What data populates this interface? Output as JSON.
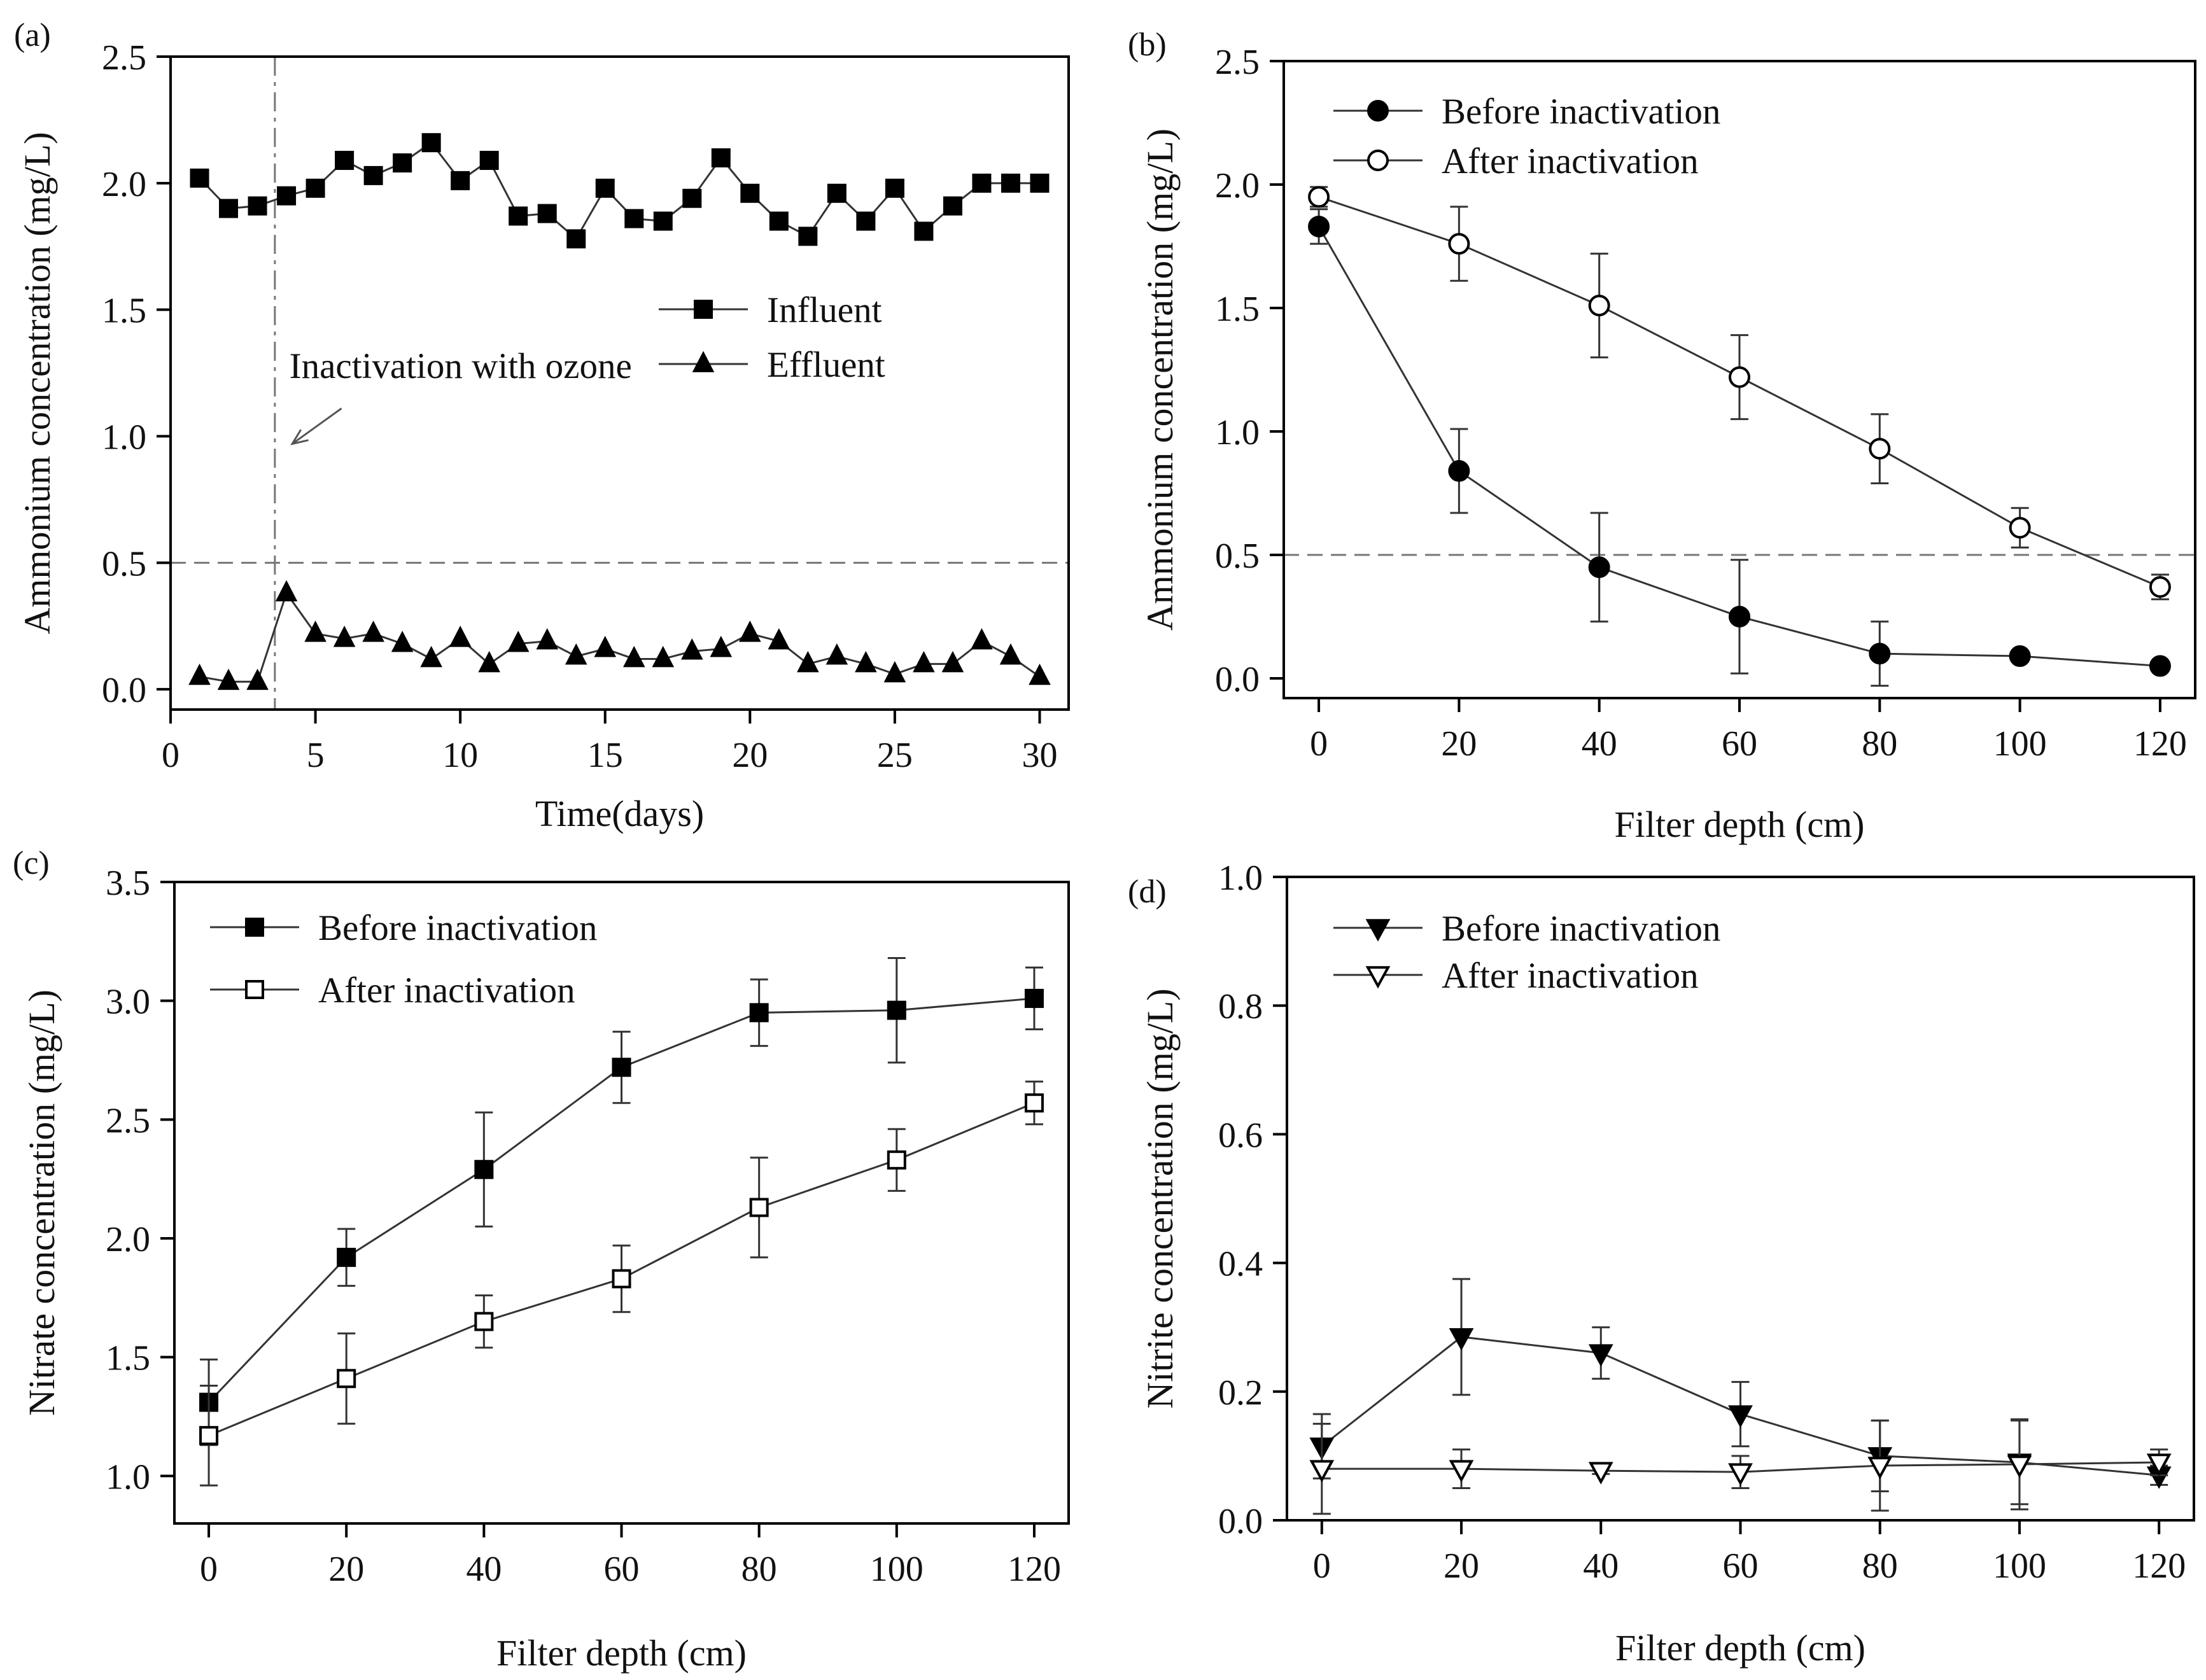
{
  "chart_data": [
    {
      "id": "a",
      "type": "line",
      "panel_label": "(a)",
      "xlabel": "Time(days)",
      "ylabel": "Ammonium concentration (mg/L)",
      "xlim": [
        0,
        31
      ],
      "ylim": [
        -0.08,
        2.5
      ],
      "xticks": [
        0,
        5,
        10,
        15,
        20,
        25,
        30
      ],
      "xtick_labels": [
        "0",
        "5",
        "10",
        "15",
        "20",
        "25",
        "30"
      ],
      "yticks": [
        0,
        0.5,
        1,
        1.5,
        2,
        2.5
      ],
      "ytick_labels": [
        "0.0",
        "0.5",
        "1.0",
        "1.5",
        "2.0",
        "2.5"
      ],
      "hline": 0.5,
      "vline": 3.6,
      "annotation": {
        "text": "Inactivation with ozone",
        "text_at": [
          4.1,
          1.23
        ],
        "arrow_from": [
          5.9,
          1.11
        ],
        "arrow_to": [
          4.2,
          0.97
        ]
      },
      "legend_position": "center-right",
      "series": [
        {
          "name": "Influent",
          "marker": "square",
          "filled": true,
          "x": [
            1,
            2,
            3,
            4,
            5,
            6,
            7,
            8,
            9,
            10,
            11,
            12,
            13,
            14,
            15,
            16,
            17,
            18,
            19,
            20,
            21,
            22,
            23,
            24,
            25,
            26,
            27,
            28,
            29,
            30
          ],
          "values": [
            2.02,
            1.9,
            1.91,
            1.95,
            1.98,
            2.09,
            2.03,
            2.08,
            2.16,
            2.01,
            2.09,
            1.87,
            1.88,
            1.78,
            1.98,
            1.86,
            1.85,
            1.94,
            2.1,
            1.96,
            1.85,
            1.79,
            1.96,
            1.85,
            1.98,
            1.81,
            1.91,
            2.0,
            2.0,
            2.0
          ]
        },
        {
          "name": "Effluent",
          "marker": "triangle-up",
          "filled": true,
          "x": [
            1,
            2,
            3,
            4,
            5,
            6,
            7,
            8,
            9,
            10,
            11,
            12,
            13,
            14,
            15,
            16,
            17,
            18,
            19,
            20,
            21,
            22,
            23,
            24,
            25,
            26,
            27,
            28,
            29,
            30
          ],
          "values": [
            0.05,
            0.03,
            0.03,
            0.38,
            0.22,
            0.2,
            0.22,
            0.18,
            0.12,
            0.2,
            0.1,
            0.18,
            0.19,
            0.13,
            0.16,
            0.12,
            0.12,
            0.15,
            0.16,
            0.22,
            0.19,
            0.1,
            0.13,
            0.1,
            0.06,
            0.1,
            0.1,
            0.19,
            0.13,
            0.05
          ]
        }
      ]
    },
    {
      "id": "b",
      "type": "line",
      "panel_label": "(b)",
      "xlabel": "Filter depth (cm)",
      "ylabel": "Ammonium concentration (mg/L)",
      "xlim": [
        -5,
        125
      ],
      "ylim": [
        -0.08,
        2.5
      ],
      "xticks": [
        0,
        20,
        40,
        60,
        80,
        100,
        120
      ],
      "xtick_labels": [
        "0",
        "20",
        "40",
        "60",
        "80",
        "100",
        "120"
      ],
      "yticks": [
        0,
        0.5,
        1,
        1.5,
        2,
        2.5
      ],
      "ytick_labels": [
        "0.0",
        "0.5",
        "1.0",
        "1.5",
        "2.0",
        "2.5"
      ],
      "hline": 0.5,
      "legend_position": "top-center",
      "series": [
        {
          "name": "Before inactivation",
          "marker": "circle",
          "filled": true,
          "x": [
            0,
            20,
            40,
            60,
            80,
            100,
            120
          ],
          "values": [
            1.83,
            0.84,
            0.45,
            0.25,
            0.1,
            0.09,
            0.05
          ],
          "err": [
            0.07,
            0.17,
            0.22,
            0.23,
            0.13,
            0.0,
            0.0
          ]
        },
        {
          "name": "After inactivation",
          "marker": "circle",
          "filled": false,
          "x": [
            0,
            20,
            40,
            60,
            80,
            100,
            120
          ],
          "values": [
            1.95,
            1.76,
            1.51,
            1.22,
            0.93,
            0.61,
            0.37
          ],
          "err": [
            0.04,
            0.15,
            0.21,
            0.17,
            0.14,
            0.08,
            0.05
          ]
        }
      ]
    },
    {
      "id": "c",
      "type": "line",
      "panel_label": "(c)",
      "xlabel": "Filter depth (cm)",
      "ylabel": "Nitrate concentration (mg/L)",
      "xlim": [
        -5,
        125
      ],
      "ylim": [
        0.8,
        3.5
      ],
      "xticks": [
        0,
        20,
        40,
        60,
        80,
        100,
        120
      ],
      "xtick_labels": [
        "0",
        "20",
        "40",
        "60",
        "80",
        "100",
        "120"
      ],
      "yticks": [
        1,
        1.5,
        2,
        2.5,
        3,
        3.5
      ],
      "ytick_labels": [
        "1.0",
        "1.5",
        "2.0",
        "2.5",
        "3.0",
        "3.5"
      ],
      "legend_position": "top-left",
      "series": [
        {
          "name": "Before inactivation",
          "marker": "square",
          "filled": true,
          "x": [
            0,
            20,
            40,
            60,
            80,
            100,
            120
          ],
          "values": [
            1.31,
            1.92,
            2.29,
            2.72,
            2.95,
            2.96,
            3.01
          ],
          "err": [
            0.18,
            0.12,
            0.24,
            0.15,
            0.14,
            0.22,
            0.13
          ]
        },
        {
          "name": "After inactivation",
          "marker": "square",
          "filled": false,
          "x": [
            0,
            20,
            40,
            60,
            80,
            100,
            120
          ],
          "values": [
            1.17,
            1.41,
            1.65,
            1.83,
            2.13,
            2.33,
            2.57
          ],
          "err": [
            0.21,
            0.19,
            0.11,
            0.14,
            0.21,
            0.13,
            0.09
          ]
        }
      ]
    },
    {
      "id": "d",
      "type": "line",
      "panel_label": "(d)",
      "xlabel": "Filter depth (cm)",
      "ylabel": "Nitrite concentration (mg/L)",
      "xlim": [
        -5,
        125
      ],
      "ylim": [
        0,
        1
      ],
      "xticks": [
        0,
        20,
        40,
        60,
        80,
        100,
        120
      ],
      "xtick_labels": [
        "0",
        "20",
        "40",
        "60",
        "80",
        "100",
        "120"
      ],
      "yticks": [
        0,
        0.2,
        0.4,
        0.6,
        0.8,
        1
      ],
      "ytick_labels": [
        "0.0",
        "0.2",
        "0.4",
        "0.6",
        "0.8",
        "1.0"
      ],
      "legend_position": "top-center",
      "series": [
        {
          "name": "Before inactivation",
          "marker": "triangle-down",
          "filled": true,
          "x": [
            0,
            20,
            40,
            60,
            80,
            100,
            120
          ],
          "values": [
            0.115,
            0.285,
            0.26,
            0.165,
            0.1,
            0.09,
            0.07
          ],
          "err": [
            0.05,
            0.09,
            0.04,
            0.05,
            0.055,
            0.065,
            0.015
          ]
        },
        {
          "name": "After inactivation",
          "marker": "triangle-down",
          "filled": false,
          "x": [
            0,
            20,
            40,
            60,
            80,
            100,
            120
          ],
          "values": [
            0.08,
            0.08,
            0.077,
            0.075,
            0.085,
            0.087,
            0.09
          ],
          "err": [
            0.07,
            0.03,
            0.005,
            0.025,
            0.07,
            0.07,
            0.02
          ]
        }
      ]
    }
  ]
}
